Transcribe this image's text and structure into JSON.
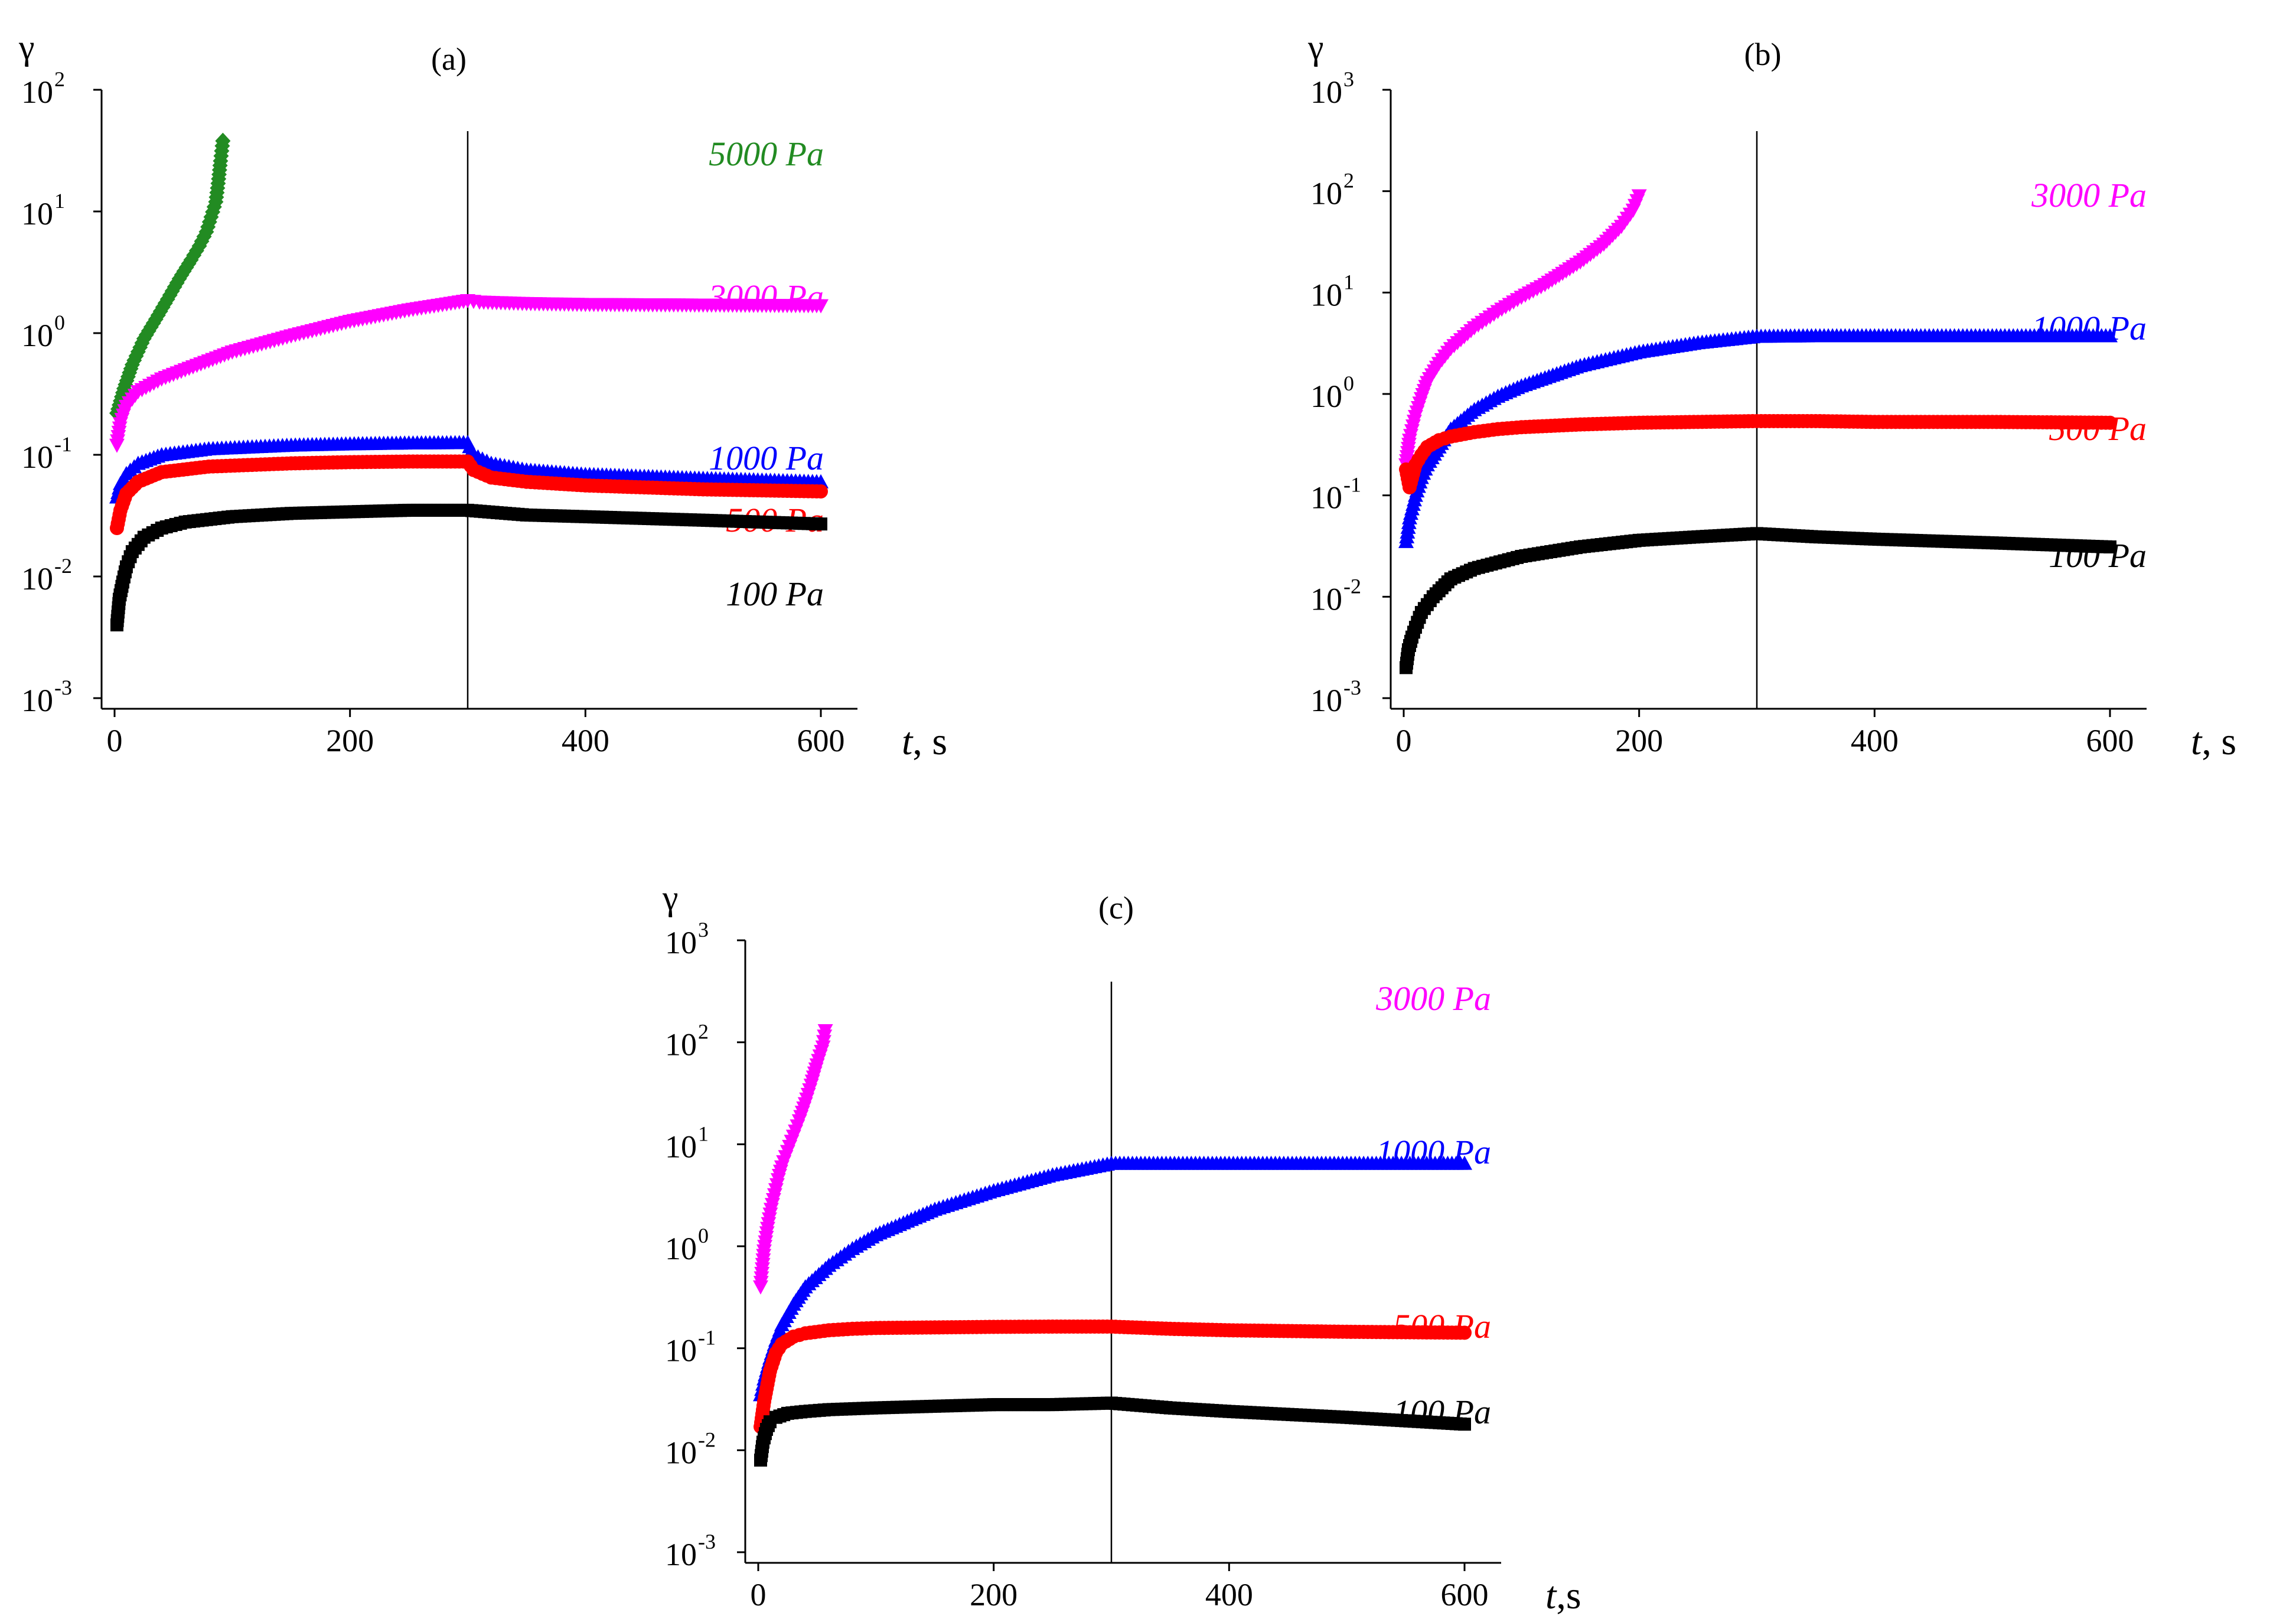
{
  "chart_data": [
    {
      "type": "scatter",
      "panel_label": "(a)",
      "ylabel": "γ",
      "xlabel_var": "t",
      "xlabel_unit": ", s",
      "xlim": [
        0,
        600
      ],
      "ylim": [
        0.001,
        100
      ],
      "yscale": "log",
      "xticks": [
        0,
        200,
        400,
        600
      ],
      "yticks": [
        {
          "base": "10",
          "exp": "-3"
        },
        {
          "base": "10",
          "exp": "-2"
        },
        {
          "base": "10",
          "exp": "-1"
        },
        {
          "base": "10",
          "exp": "0"
        },
        {
          "base": "10",
          "exp": "1"
        },
        {
          "base": "10",
          "exp": "2"
        }
      ],
      "vline_x": 300,
      "series": [
        {
          "name": "5000 Pa",
          "color": "#228B22",
          "marker": "diamond",
          "x": [
            2,
            8,
            15,
            25,
            35,
            45,
            55,
            65,
            72,
            78,
            82,
            86,
            88,
            90,
            92
          ],
          "y": [
            0.22,
            0.35,
            0.55,
            0.9,
            1.3,
            1.9,
            2.8,
            4.0,
            5.2,
            6.8,
            9.0,
            12,
            17,
            26,
            38
          ]
        },
        {
          "name": "3000 Pa",
          "color": "#FF00FF",
          "marker": "triangle-down",
          "x": [
            2,
            5,
            10,
            20,
            40,
            60,
            100,
            150,
            200,
            250,
            300,
            310,
            350,
            400,
            500,
            600
          ],
          "y": [
            0.12,
            0.18,
            0.25,
            0.33,
            0.42,
            0.5,
            0.7,
            0.95,
            1.25,
            1.55,
            1.85,
            1.8,
            1.75,
            1.72,
            1.7,
            1.68
          ]
        },
        {
          "name": "1000 Pa",
          "color": "#0000FF",
          "marker": "triangle-up",
          "x": [
            2,
            5,
            10,
            20,
            40,
            80,
            150,
            200,
            250,
            300,
            305,
            320,
            350,
            400,
            500,
            600
          ],
          "y": [
            0.045,
            0.058,
            0.07,
            0.085,
            0.1,
            0.112,
            0.12,
            0.123,
            0.125,
            0.126,
            0.1,
            0.085,
            0.075,
            0.069,
            0.064,
            0.06
          ]
        },
        {
          "name": "500 Pa",
          "color": "#FF0000",
          "marker": "circle",
          "x": [
            2,
            5,
            10,
            20,
            40,
            80,
            150,
            200,
            250,
            300,
            305,
            320,
            350,
            400,
            500,
            600
          ],
          "y": [
            0.025,
            0.035,
            0.048,
            0.06,
            0.072,
            0.08,
            0.085,
            0.087,
            0.088,
            0.088,
            0.075,
            0.065,
            0.06,
            0.056,
            0.052,
            0.05
          ]
        },
        {
          "name": "100 Pa",
          "color": "#000000",
          "marker": "square",
          "x": [
            2,
            4,
            7,
            10,
            15,
            25,
            40,
            60,
            100,
            150,
            200,
            250,
            300,
            350,
            400,
            500,
            600
          ],
          "y": [
            0.004,
            0.0065,
            0.009,
            0.012,
            0.016,
            0.021,
            0.025,
            0.028,
            0.031,
            0.033,
            0.034,
            0.035,
            0.035,
            0.032,
            0.031,
            0.029,
            0.027
          ]
        }
      ]
    },
    {
      "type": "scatter",
      "panel_label": "(b)",
      "ylabel": "γ",
      "xlabel_var": "t",
      "xlabel_unit": ", s",
      "xlim": [
        0,
        600
      ],
      "ylim": [
        0.001,
        1000
      ],
      "yscale": "log",
      "xticks": [
        0,
        200,
        400,
        600
      ],
      "yticks": [
        {
          "base": "10",
          "exp": "-3"
        },
        {
          "base": "10",
          "exp": "-2"
        },
        {
          "base": "10",
          "exp": "-1"
        },
        {
          "base": "10",
          "exp": "0"
        },
        {
          "base": "10",
          "exp": "1"
        },
        {
          "base": "10",
          "exp": "2"
        },
        {
          "base": "10",
          "exp": "3"
        }
      ],
      "vline_x": 300,
      "series": [
        {
          "name": "3000 Pa",
          "color": "#FF00FF",
          "marker": "triangle-down",
          "x": [
            2,
            5,
            10,
            15,
            20,
            30,
            40,
            60,
            80,
            100,
            120,
            150,
            170,
            185,
            195,
            200
          ],
          "y": [
            0.2,
            0.35,
            0.6,
            0.9,
            1.3,
            2.0,
            2.8,
            4.5,
            6.5,
            9,
            12,
            20,
            30,
            45,
            65,
            90
          ]
        },
        {
          "name": "1000 Pa",
          "color": "#0000FF",
          "marker": "triangle-up",
          "x": [
            2,
            5,
            10,
            15,
            20,
            30,
            40,
            60,
            80,
            100,
            150,
            200,
            250,
            300,
            350,
            400,
            500,
            600
          ],
          "y": [
            0.035,
            0.06,
            0.1,
            0.15,
            0.2,
            0.3,
            0.45,
            0.7,
            0.95,
            1.2,
            1.9,
            2.6,
            3.2,
            3.7,
            3.75,
            3.75,
            3.75,
            3.75
          ]
        },
        {
          "name": "500 Pa",
          "color": "#FF0000",
          "marker": "circle",
          "x": [
            2,
            5,
            10,
            15,
            20,
            30,
            40,
            60,
            80,
            100,
            150,
            200,
            250,
            300,
            350,
            400,
            500,
            600
          ],
          "y": [
            0.18,
            0.12,
            0.2,
            0.25,
            0.3,
            0.35,
            0.38,
            0.42,
            0.45,
            0.47,
            0.5,
            0.52,
            0.53,
            0.54,
            0.54,
            0.53,
            0.53,
            0.52
          ]
        },
        {
          "name": "100 Pa",
          "color": "#000000",
          "marker": "square",
          "x": [
            2,
            4,
            7,
            10,
            15,
            25,
            40,
            60,
            100,
            150,
            200,
            250,
            300,
            350,
            400,
            500,
            600
          ],
          "y": [
            0.002,
            0.003,
            0.004,
            0.005,
            0.007,
            0.01,
            0.015,
            0.019,
            0.025,
            0.031,
            0.036,
            0.039,
            0.042,
            0.039,
            0.037,
            0.034,
            0.031
          ]
        }
      ]
    },
    {
      "type": "scatter",
      "panel_label": "(c)",
      "ylabel": "γ",
      "xlabel_var": "t",
      "xlabel_unit": ",s",
      "xlim": [
        0,
        600
      ],
      "ylim": [
        0.001,
        1000
      ],
      "yscale": "log",
      "xticks": [
        0,
        200,
        400,
        600
      ],
      "yticks": [
        {
          "base": "10",
          "exp": "-3"
        },
        {
          "base": "10",
          "exp": "-2"
        },
        {
          "base": "10",
          "exp": "-1"
        },
        {
          "base": "10",
          "exp": "0"
        },
        {
          "base": "10",
          "exp": "1"
        },
        {
          "base": "10",
          "exp": "2"
        },
        {
          "base": "10",
          "exp": "3"
        }
      ],
      "vline_x": 300,
      "series": [
        {
          "name": "3000 Pa",
          "color": "#FF00FF",
          "marker": "triangle-down",
          "x": [
            2,
            5,
            8,
            11,
            14,
            17,
            20,
            25,
            30,
            35,
            40,
            45,
            50,
            55,
            57
          ],
          "y": [
            0.4,
            0.9,
            1.5,
            2.3,
            3.2,
            4.5,
            6,
            8.5,
            12,
            17,
            25,
            38,
            60,
            90,
            130
          ]
        },
        {
          "name": "1000 Pa",
          "color": "#0000FF",
          "marker": "triangle-up",
          "x": [
            2,
            5,
            10,
            15,
            20,
            30,
            40,
            60,
            80,
            100,
            150,
            200,
            250,
            300,
            350,
            400,
            500,
            600
          ],
          "y": [
            0.035,
            0.05,
            0.08,
            0.12,
            0.17,
            0.27,
            0.4,
            0.65,
            0.95,
            1.3,
            2.3,
            3.5,
            5,
            6.5,
            6.5,
            6.5,
            6.5,
            6.5
          ]
        },
        {
          "name": "500 Pa",
          "color": "#FF0000",
          "marker": "circle",
          "x": [
            2,
            5,
            10,
            15,
            20,
            30,
            40,
            60,
            80,
            100,
            150,
            200,
            250,
            300,
            350,
            400,
            500,
            600
          ],
          "y": [
            0.017,
            0.03,
            0.06,
            0.09,
            0.11,
            0.13,
            0.14,
            0.15,
            0.155,
            0.158,
            0.16,
            0.162,
            0.163,
            0.163,
            0.155,
            0.15,
            0.145,
            0.142
          ]
        },
        {
          "name": "100 Pa",
          "color": "#000000",
          "marker": "square",
          "x": [
            2,
            4,
            7,
            10,
            15,
            25,
            40,
            60,
            100,
            150,
            200,
            250,
            300,
            350,
            400,
            500,
            600
          ],
          "y": [
            0.008,
            0.012,
            0.016,
            0.019,
            0.021,
            0.023,
            0.024,
            0.025,
            0.026,
            0.027,
            0.028,
            0.028,
            0.029,
            0.026,
            0.024,
            0.021,
            0.018
          ]
        }
      ]
    }
  ]
}
